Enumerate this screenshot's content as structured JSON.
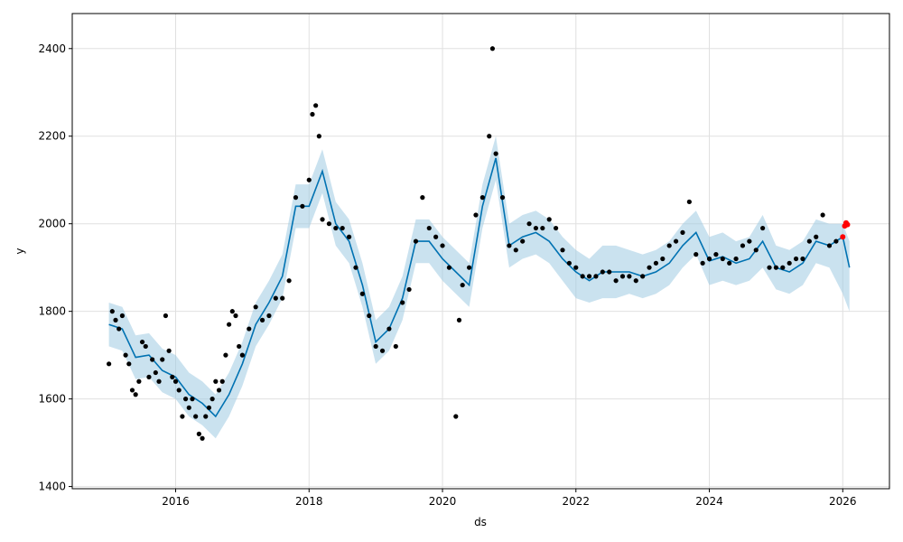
{
  "chart_data": {
    "type": "scatter",
    "title": "",
    "xlabel": "ds",
    "ylabel": "y",
    "xlim": [
      2014.45,
      2026.7
    ],
    "ylim": [
      1395,
      2480
    ],
    "x_ticks": [
      2016,
      2018,
      2020,
      2022,
      2024,
      2026
    ],
    "x_tick_labels": [
      "2016",
      "2018",
      "2020",
      "2022",
      "2024",
      "2026"
    ],
    "y_ticks": [
      1400,
      1600,
      1800,
      2000,
      2200,
      2400
    ],
    "y_tick_labels": [
      "1400",
      "1600",
      "1800",
      "2000",
      "2200",
      "2400"
    ],
    "grid": true,
    "colors": {
      "observed": "#000000",
      "forecast_line": "#0072B2",
      "uncertainty": "#9ecae1",
      "recent_points": "#ff0000"
    },
    "series": [
      {
        "role": "forecast",
        "x": [
          2015.0,
          2015.2,
          2015.4,
          2015.6,
          2015.8,
          2016.0,
          2016.2,
          2016.4,
          2016.6,
          2016.8,
          2017.0,
          2017.2,
          2017.4,
          2017.6,
          2017.8,
          2018.0,
          2018.2,
          2018.4,
          2018.6,
          2018.8,
          2019.0,
          2019.2,
          2019.4,
          2019.6,
          2019.8,
          2020.0,
          2020.2,
          2020.4,
          2020.6,
          2020.8,
          2021.0,
          2021.2,
          2021.4,
          2021.6,
          2021.8,
          2022.0,
          2022.2,
          2022.4,
          2022.6,
          2022.8,
          2023.0,
          2023.2,
          2023.4,
          2023.6,
          2023.8,
          2024.0,
          2024.2,
          2024.4,
          2024.6,
          2024.8,
          2025.0,
          2025.2,
          2025.4,
          2025.6,
          2025.8,
          2026.0,
          2026.1
        ],
        "y": [
          1770,
          1760,
          1695,
          1700,
          1665,
          1650,
          1610,
          1590,
          1560,
          1610,
          1680,
          1770,
          1820,
          1880,
          2040,
          2040,
          2120,
          2000,
          1960,
          1860,
          1730,
          1760,
          1830,
          1960,
          1960,
          1920,
          1890,
          1860,
          2040,
          2150,
          1950,
          1970,
          1980,
          1960,
          1920,
          1890,
          1870,
          1890,
          1890,
          1890,
          1880,
          1890,
          1910,
          1950,
          1980,
          1915,
          1925,
          1910,
          1920,
          1960,
          1900,
          1890,
          1910,
          1960,
          1950,
          1970,
          1900
        ],
        "lower": [
          1720,
          1710,
          1645,
          1650,
          1615,
          1600,
          1560,
          1540,
          1510,
          1560,
          1630,
          1720,
          1770,
          1830,
          1990,
          1990,
          2070,
          1950,
          1910,
          1810,
          1680,
          1710,
          1780,
          1910,
          1910,
          1870,
          1840,
          1810,
          1990,
          2100,
          1900,
          1920,
          1930,
          1910,
          1870,
          1830,
          1820,
          1830,
          1830,
          1840,
          1830,
          1840,
          1860,
          1900,
          1930,
          1860,
          1870,
          1860,
          1870,
          1900,
          1850,
          1840,
          1860,
          1910,
          1900,
          1840,
          1800
        ],
        "upper": [
          1820,
          1810,
          1745,
          1750,
          1715,
          1700,
          1660,
          1640,
          1610,
          1660,
          1730,
          1820,
          1870,
          1930,
          2090,
          2090,
          2170,
          2050,
          2010,
          1910,
          1780,
          1810,
          1880,
          2010,
          2010,
          1970,
          1940,
          1910,
          2090,
          2200,
          2000,
          2020,
          2030,
          2010,
          1970,
          1940,
          1920,
          1950,
          1950,
          1940,
          1930,
          1940,
          1960,
          2000,
          2030,
          1970,
          1980,
          1960,
          1970,
          2020,
          1950,
          1940,
          1960,
          2010,
          2000,
          2000,
          1960
        ]
      },
      {
        "role": "observed",
        "x": [
          2015.0,
          2015.05,
          2015.1,
          2015.15,
          2015.2,
          2015.25,
          2015.3,
          2015.35,
          2015.4,
          2015.45,
          2015.5,
          2015.55,
          2015.6,
          2015.65,
          2015.7,
          2015.75,
          2015.8,
          2015.85,
          2015.9,
          2015.95,
          2016.0,
          2016.05,
          2016.1,
          2016.15,
          2016.2,
          2016.25,
          2016.3,
          2016.35,
          2016.4,
          2016.45,
          2016.5,
          2016.55,
          2016.6,
          2016.65,
          2016.7,
          2016.75,
          2016.8,
          2016.85,
          2016.9,
          2016.95,
          2017.0,
          2017.1,
          2017.2,
          2017.3,
          2017.4,
          2017.5,
          2017.6,
          2017.7,
          2017.8,
          2017.9,
          2018.0,
          2018.05,
          2018.1,
          2018.15,
          2018.2,
          2018.3,
          2018.4,
          2018.5,
          2018.6,
          2018.7,
          2018.8,
          2018.9,
          2019.0,
          2019.1,
          2019.2,
          2019.3,
          2019.4,
          2019.5,
          2019.6,
          2019.7,
          2019.8,
          2019.9,
          2020.0,
          2020.1,
          2020.2,
          2020.25,
          2020.3,
          2020.4,
          2020.5,
          2020.6,
          2020.7,
          2020.75,
          2020.8,
          2020.9,
          2021.0,
          2021.1,
          2021.2,
          2021.3,
          2021.4,
          2021.5,
          2021.6,
          2021.7,
          2021.8,
          2021.9,
          2022.0,
          2022.1,
          2022.2,
          2022.3,
          2022.4,
          2022.5,
          2022.6,
          2022.7,
          2022.8,
          2022.9,
          2023.0,
          2023.1,
          2023.2,
          2023.3,
          2023.4,
          2023.5,
          2023.6,
          2023.7,
          2023.8,
          2023.9,
          2024.0,
          2024.1,
          2024.2,
          2024.3,
          2024.4,
          2024.5,
          2024.6,
          2024.7,
          2024.8,
          2024.9,
          2025.0,
          2025.1,
          2025.2,
          2025.3,
          2025.4,
          2025.5,
          2025.6,
          2025.7,
          2025.8,
          2025.9
        ],
        "y": [
          1680,
          1800,
          1780,
          1760,
          1790,
          1700,
          1680,
          1620,
          1610,
          1640,
          1730,
          1720,
          1650,
          1690,
          1660,
          1640,
          1690,
          1790,
          1710,
          1650,
          1640,
          1620,
          1560,
          1600,
          1580,
          1600,
          1560,
          1520,
          1510,
          1560,
          1580,
          1600,
          1640,
          1620,
          1640,
          1700,
          1770,
          1800,
          1790,
          1720,
          1700,
          1760,
          1810,
          1780,
          1790,
          1830,
          1830,
          1870,
          2060,
          2040,
          2100,
          2250,
          2270,
          2200,
          2010,
          2000,
          1990,
          1990,
          1970,
          1900,
          1840,
          1790,
          1720,
          1710,
          1760,
          1720,
          1820,
          1850,
          1960,
          2060,
          1990,
          1970,
          1950,
          1900,
          1560,
          1780,
          1860,
          1900,
          2020,
          2060,
          2200,
          2400,
          2160,
          2060,
          1950,
          1940,
          1960,
          2000,
          1990,
          1990,
          2010,
          1990,
          1940,
          1910,
          1900,
          1880,
          1880,
          1880,
          1890,
          1890,
          1870,
          1880,
          1880,
          1870,
          1880,
          1900,
          1910,
          1920,
          1950,
          1960,
          1980,
          2050,
          1930,
          1910,
          1920,
          1930,
          1920,
          1910,
          1920,
          1950,
          1960,
          1940,
          1990,
          1900,
          1900,
          1900,
          1910,
          1920,
          1920,
          1960,
          1970,
          2020,
          1950,
          1960
        ]
      },
      {
        "role": "recent",
        "x": [
          2026.0,
          2026.03,
          2026.05,
          2026.07
        ],
        "y": [
          1970,
          1995,
          2002,
          1998
        ]
      }
    ]
  }
}
